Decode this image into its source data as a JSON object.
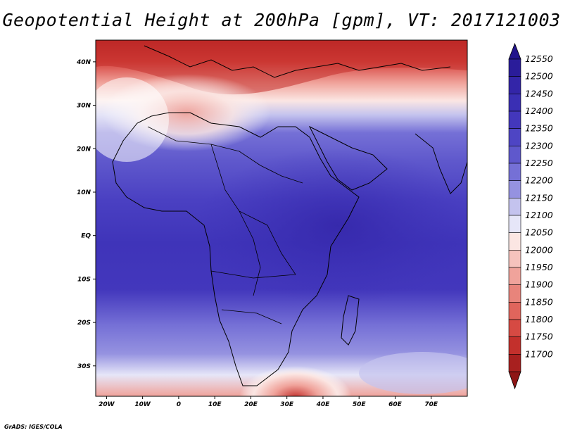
{
  "title": "Geopotential Height at 200hPa [gpm], VT: 2017121003",
  "credit": "GrADS: IGES/COLA",
  "map": {
    "lon_range": [
      -23,
      80
    ],
    "lat_range": [
      -37,
      45
    ],
    "lon_ticks": [
      {
        "value": -20,
        "label": "20W"
      },
      {
        "value": -10,
        "label": "10W"
      },
      {
        "value": 0,
        "label": "0"
      },
      {
        "value": 10,
        "label": "10E"
      },
      {
        "value": 20,
        "label": "20E"
      },
      {
        "value": 30,
        "label": "30E"
      },
      {
        "value": 40,
        "label": "40E"
      },
      {
        "value": 50,
        "label": "50E"
      },
      {
        "value": 60,
        "label": "60E"
      },
      {
        "value": 70,
        "label": "70E"
      }
    ],
    "lat_ticks": [
      {
        "value": 40,
        "label": "40N"
      },
      {
        "value": 30,
        "label": "30N"
      },
      {
        "value": 20,
        "label": "20N"
      },
      {
        "value": 10,
        "label": "10N"
      },
      {
        "value": 0,
        "label": "EQ"
      },
      {
        "value": -10,
        "label": "10S"
      },
      {
        "value": -20,
        "label": "20S"
      },
      {
        "value": -30,
        "label": "30S"
      }
    ]
  },
  "colorbar": {
    "levels": [
      {
        "label": "12550",
        "color": "#2a1c9a"
      },
      {
        "label": "12500",
        "color": "#3325a8"
      },
      {
        "label": "12450",
        "color": "#3a2fb4"
      },
      {
        "label": "12400",
        "color": "#4337bc"
      },
      {
        "label": "12350",
        "color": "#4e45c4"
      },
      {
        "label": "12300",
        "color": "#5f58cc"
      },
      {
        "label": "12250",
        "color": "#7570d6"
      },
      {
        "label": "12200",
        "color": "#9592e0"
      },
      {
        "label": "12150",
        "color": "#c4c3ee"
      },
      {
        "label": "12100",
        "color": "#e6e6f8"
      },
      {
        "label": "12050",
        "color": "#fbe6e3"
      },
      {
        "label": "12000",
        "color": "#f6c3bd"
      },
      {
        "label": "11950",
        "color": "#f0a39b"
      },
      {
        "label": "11900",
        "color": "#e8847b"
      },
      {
        "label": "11850",
        "color": "#e0655c"
      },
      {
        "label": "11800",
        "color": "#d64a43"
      },
      {
        "label": "11750",
        "color": "#c3302c"
      },
      {
        "label": "11700",
        "color": "#a8201f"
      }
    ],
    "top_arrow_color": "#22148c",
    "bottom_arrow_color": "#8e1515"
  }
}
